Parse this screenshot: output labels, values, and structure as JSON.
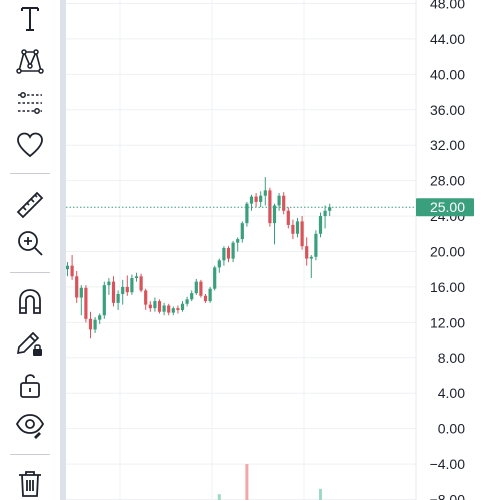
{
  "toolbar": {
    "tools": [
      {
        "name": "text-tool",
        "icon": "text-t-icon"
      },
      {
        "name": "pattern-tool",
        "icon": "pattern-xabcd-icon"
      },
      {
        "name": "fib-tool",
        "icon": "fib-levels-icon"
      },
      {
        "name": "favorites-tool",
        "icon": "heart-icon"
      },
      {
        "name": "ruler-tool",
        "icon": "ruler-icon"
      },
      {
        "name": "zoom-in-tool",
        "icon": "zoom-in-icon"
      },
      {
        "name": "magnet-tool",
        "icon": "magnet-icon"
      },
      {
        "name": "lock-drawings-tool",
        "icon": "pencil-lock-icon"
      },
      {
        "name": "lock-all-tool",
        "icon": "padlock-open-icon"
      },
      {
        "name": "hide-drawings-tool",
        "icon": "eye-icon"
      },
      {
        "name": "delete-tool",
        "icon": "trash-icon"
      }
    ]
  },
  "price_axis": {
    "labels": [
      "48.00",
      "44.00",
      "40.00",
      "36.00",
      "32.00",
      "28.00",
      "24.00",
      "20.00",
      "16.00",
      "12.00",
      "8.00",
      "4.00",
      "0.00",
      "−4.00",
      "−8.00"
    ],
    "values": [
      48,
      44,
      40,
      36,
      32,
      28,
      24,
      20,
      16,
      12,
      8,
      4,
      0,
      -4,
      -8
    ]
  },
  "current_price": {
    "label": "25.00",
    "value": 25.0,
    "color": "#3a9f7d"
  },
  "colors": {
    "up": "#3a9f7d",
    "down": "#d9545a",
    "grid": "#eef0f3",
    "up_volume": "#9fd8c3",
    "down_volume": "#f1a7aa"
  },
  "chart_data": {
    "type": "candlestick",
    "y_range": [
      -8,
      48
    ],
    "candles": [
      [
        18.0,
        18.8,
        17.2,
        18.4
      ],
      [
        18.4,
        19.6,
        16.8,
        17.2
      ],
      [
        17.2,
        17.8,
        14.2,
        14.8
      ],
      [
        14.8,
        16.2,
        12.8,
        15.9
      ],
      [
        15.9,
        16.2,
        12.0,
        12.4
      ],
      [
        12.4,
        13.2,
        10.2,
        11.2
      ],
      [
        11.2,
        12.6,
        10.8,
        12.3
      ],
      [
        12.3,
        13.0,
        11.8,
        12.8
      ],
      [
        12.8,
        16.6,
        12.4,
        16.2
      ],
      [
        16.2,
        17.0,
        15.1,
        16.6
      ],
      [
        16.6,
        17.2,
        13.8,
        14.2
      ],
      [
        14.2,
        15.6,
        13.4,
        15.2
      ],
      [
        15.2,
        16.8,
        14.0,
        16.0
      ],
      [
        16.0,
        17.3,
        15.0,
        15.4
      ],
      [
        15.4,
        17.4,
        15.1,
        17.0
      ],
      [
        17.0,
        17.6,
        16.6,
        17.2
      ],
      [
        17.2,
        17.5,
        15.4,
        15.6
      ],
      [
        15.6,
        15.8,
        13.4,
        14.0
      ],
      [
        14.0,
        14.4,
        13.2,
        13.6
      ],
      [
        13.6,
        14.8,
        13.2,
        14.4
      ],
      [
        14.4,
        14.6,
        13.0,
        13.2
      ],
      [
        13.2,
        14.2,
        12.8,
        13.9
      ],
      [
        13.9,
        14.1,
        12.8,
        13.1
      ],
      [
        13.1,
        13.8,
        12.8,
        13.6
      ],
      [
        13.6,
        13.9,
        13.0,
        13.4
      ],
      [
        13.4,
        14.4,
        13.2,
        14.1
      ],
      [
        14.1,
        14.9,
        13.8,
        14.6
      ],
      [
        14.6,
        15.6,
        14.4,
        15.3
      ],
      [
        15.3,
        16.9,
        15.1,
        16.6
      ],
      [
        16.6,
        16.8,
        14.8,
        15.0
      ],
      [
        15.0,
        15.2,
        14.2,
        14.4
      ],
      [
        14.4,
        16.0,
        14.2,
        15.8
      ],
      [
        15.8,
        18.4,
        15.6,
        18.2
      ],
      [
        18.2,
        19.2,
        17.6,
        19.0
      ],
      [
        19.0,
        20.6,
        18.4,
        20.4
      ],
      [
        20.4,
        20.6,
        18.8,
        19.2
      ],
      [
        19.2,
        21.2,
        18.8,
        21.0
      ],
      [
        21.0,
        21.6,
        20.0,
        21.4
      ],
      [
        21.4,
        23.4,
        21.0,
        23.2
      ],
      [
        23.2,
        25.6,
        22.8,
        25.4
      ],
      [
        25.4,
        26.4,
        24.6,
        26.2
      ],
      [
        26.2,
        26.6,
        25.0,
        25.6
      ],
      [
        25.6,
        26.8,
        25.0,
        26.3
      ],
      [
        26.3,
        28.4,
        25.2,
        26.9
      ],
      [
        26.9,
        27.2,
        22.8,
        23.2
      ],
      [
        23.2,
        25.4,
        20.8,
        25.2
      ],
      [
        25.2,
        26.6,
        24.6,
        26.3
      ],
      [
        26.3,
        26.7,
        24.2,
        24.6
      ],
      [
        24.6,
        25.0,
        22.6,
        23.0
      ],
      [
        23.0,
        23.6,
        21.4,
        22.0
      ],
      [
        22.0,
        23.8,
        21.6,
        23.4
      ],
      [
        23.4,
        24.0,
        20.2,
        20.6
      ],
      [
        20.6,
        21.6,
        18.4,
        19.2
      ],
      [
        19.2,
        19.6,
        17.0,
        19.4
      ],
      [
        19.4,
        22.4,
        19.0,
        22.0
      ],
      [
        22.0,
        24.4,
        21.6,
        24.0
      ],
      [
        24.0,
        25.2,
        22.6,
        24.6
      ],
      [
        24.6,
        25.4,
        24.0,
        25.0
      ]
    ],
    "volume_bars": [
      {
        "index": 33,
        "value": 0.6,
        "direction": "up"
      },
      {
        "index": 39,
        "value": 4.0,
        "direction": "down"
      },
      {
        "index": 55,
        "value": 1.2,
        "direction": "up"
      }
    ]
  }
}
